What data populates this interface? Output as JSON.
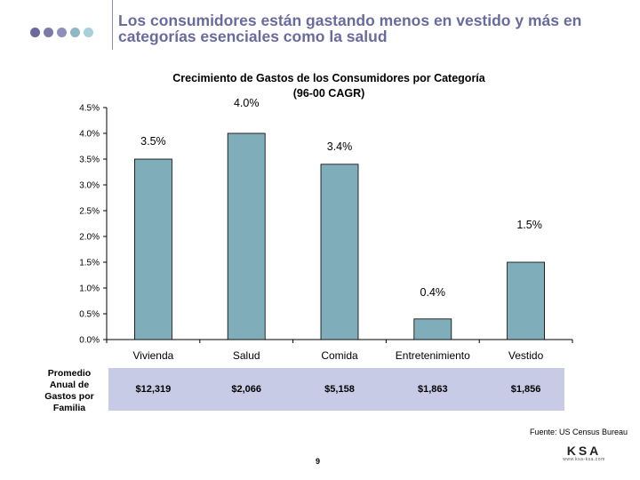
{
  "slide": {
    "title": "Los consumidores están gastando menos en vestido y más en categorías esenciales como la salud",
    "dot_colors": [
      "#6a6a9e",
      "#7a7aaa",
      "#8e8eb8",
      "#8fb8c4",
      "#a8d0da"
    ]
  },
  "chart_data": {
    "type": "bar",
    "title": "Crecimiento de Gastos de los Consumidores por Categoría",
    "subtitle": "(96-00 CAGR)",
    "categories": [
      "Vivienda",
      "Salud",
      "Comida",
      "Entretenimiento",
      "Vestido"
    ],
    "values": [
      3.5,
      4.0,
      3.4,
      0.4,
      1.5
    ],
    "value_labels": [
      "3.5%",
      "4.0%",
      "3.4%",
      "0.4%",
      "1.5%"
    ],
    "yticks": [
      "0.0%",
      "0.5%",
      "1.0%",
      "1.5%",
      "2.0%",
      "2.5%",
      "3.0%",
      "3.5%",
      "4.0%",
      "4.5%"
    ],
    "ylim": [
      0,
      4.5
    ],
    "bar_color": "#7fadb9",
    "grid": false,
    "xlabel": "",
    "ylabel": ""
  },
  "table": {
    "row_label": "Promedio Anual de Gastos por Familia",
    "values": [
      "$12,319",
      "$2,066",
      "$5,158",
      "$1,863",
      "$1,856"
    ],
    "band_color": "#c8cbe6"
  },
  "footer": {
    "source": "Fuente: US Census Bureau",
    "page": "9",
    "logo": "KSA",
    "logo_sub": "www.ksa-ksa.com"
  }
}
